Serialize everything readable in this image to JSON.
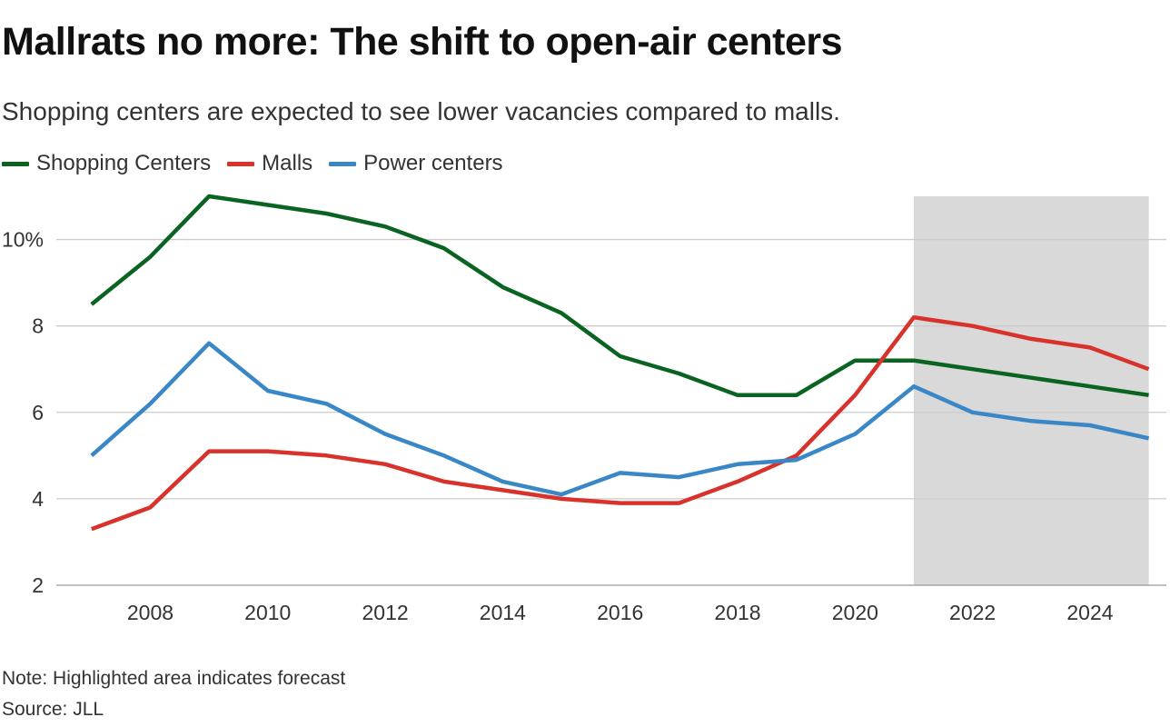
{
  "title": "Mallrats no more: The shift to open-air centers",
  "subtitle": "Shopping centers are expected to see lower vacancies compared to malls.",
  "note": "Note: Highlighted area indicates forecast",
  "source": "Source: JLL",
  "colors": {
    "shopping_centers": "#0a6421",
    "malls": "#d8322b",
    "power_centers": "#3a87c8",
    "forecast_band": "#d9d9d9",
    "grid": "#cccccc"
  },
  "chart_data": {
    "type": "line",
    "x": [
      2007,
      2008,
      2009,
      2010,
      2011,
      2012,
      2013,
      2014,
      2015,
      2016,
      2017,
      2018,
      2019,
      2020,
      2021,
      2022,
      2023,
      2024,
      2025
    ],
    "series": [
      {
        "name": "Shopping Centers",
        "values": [
          8.5,
          9.6,
          11.0,
          10.8,
          10.6,
          10.3,
          9.8,
          8.9,
          8.3,
          7.3,
          6.9,
          6.4,
          6.4,
          7.2,
          7.2,
          7.0,
          6.8,
          6.6,
          6.4
        ]
      },
      {
        "name": "Malls",
        "values": [
          3.3,
          3.8,
          5.1,
          5.1,
          5.0,
          4.8,
          4.4,
          4.2,
          4.0,
          3.9,
          3.9,
          4.4,
          5.0,
          6.4,
          8.2,
          8.0,
          7.7,
          7.5,
          7.0
        ]
      },
      {
        "name": "Power centers",
        "values": [
          5.0,
          6.2,
          7.6,
          6.5,
          6.2,
          5.5,
          5.0,
          4.4,
          4.1,
          4.6,
          4.5,
          4.8,
          4.9,
          5.5,
          6.6,
          6.0,
          5.8,
          5.7,
          5.4
        ]
      }
    ],
    "xticks": [
      2008,
      2010,
      2012,
      2014,
      2016,
      2018,
      2020,
      2022,
      2024
    ],
    "yticks": [
      2,
      4,
      6,
      8,
      10
    ],
    "ytick_labels": [
      "2",
      "4",
      "6",
      "8",
      "10%"
    ],
    "xlim": [
      2006.4,
      2025.3
    ],
    "ylim": [
      2,
      11
    ],
    "forecast_range": [
      2021,
      2025
    ],
    "grid": "horizontal",
    "legend_position": "top-left"
  }
}
